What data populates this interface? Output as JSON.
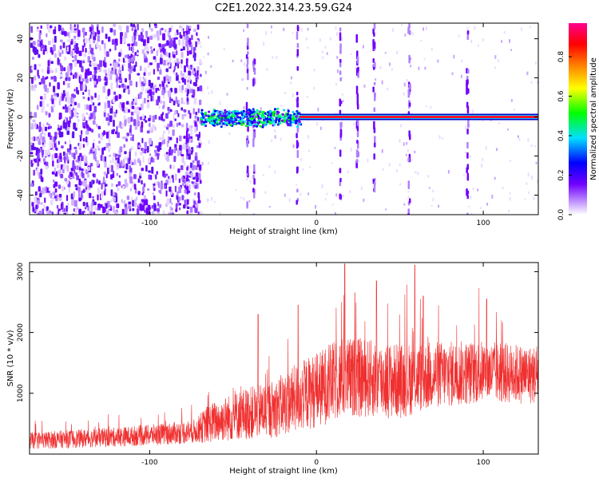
{
  "title": "C2E1.2022.314.23.59.G24",
  "chart_data": [
    {
      "type": "heatmap",
      "xlabel": "Height of straight line (km)",
      "ylabel": "Frequency (Hz)",
      "xlim": [
        -172,
        133
      ],
      "ylim": [
        -50,
        48
      ],
      "xticks": [
        -100,
        0,
        100
      ],
      "yticks": [
        -40,
        -20,
        0,
        20,
        40
      ],
      "colorbar": {
        "label": "Normalized spectral amplitude",
        "range": [
          0,
          0.97
        ],
        "ticks": [
          0.0,
          0.2,
          0.4,
          0.6,
          0.8
        ],
        "colors": [
          "#ffffff",
          "#7000ff",
          "#0000ff",
          "#00e0ff",
          "#00ff00",
          "#ffff00",
          "#ff8000",
          "#ff0000",
          "#ff0090"
        ]
      },
      "features": {
        "noise_region_x": [
          -172,
          -70
        ],
        "carrier_frequency": 0,
        "turbulent_band_x": [
          -70,
          -10
        ],
        "stable_line_x": [
          -10,
          133
        ],
        "vertical_streaks_x": [
          -78,
          -42,
          -38,
          -12,
          14,
          24,
          34,
          55,
          90
        ]
      }
    },
    {
      "type": "line",
      "xlabel": "Height of straight line (km)",
      "ylabel": "SNR (10 * v/v)",
      "xlim": [
        -172,
        133
      ],
      "ylim": [
        0,
        3150
      ],
      "xticks": [
        -100,
        0,
        100
      ],
      "yticks": [
        1000,
        2000,
        3000
      ],
      "series_color": "#f03030",
      "envelope": {
        "x": [
          -172,
          -120,
          -90,
          -72,
          -65,
          -45,
          -25,
          -10,
          0,
          15,
          30,
          50,
          70,
          100,
          133
        ],
        "mean": [
          220,
          280,
          330,
          380,
          500,
          650,
          750,
          950,
          1050,
          1250,
          1250,
          1200,
          1300,
          1350,
          1300
        ],
        "spread": [
          140,
          160,
          180,
          200,
          320,
          420,
          480,
          580,
          620,
          680,
          650,
          620,
          560,
          520,
          480
        ]
      },
      "peaks": [
        {
          "x": 17,
          "y": 3130
        },
        {
          "x": 59,
          "y": 3110
        },
        {
          "x": 36,
          "y": 2850
        },
        {
          "x": 64,
          "y": 2600
        },
        {
          "x": 23,
          "y": 2650
        },
        {
          "x": -11,
          "y": 2450
        },
        {
          "x": -35,
          "y": 2300
        },
        {
          "x": 102,
          "y": 2550
        }
      ]
    }
  ]
}
